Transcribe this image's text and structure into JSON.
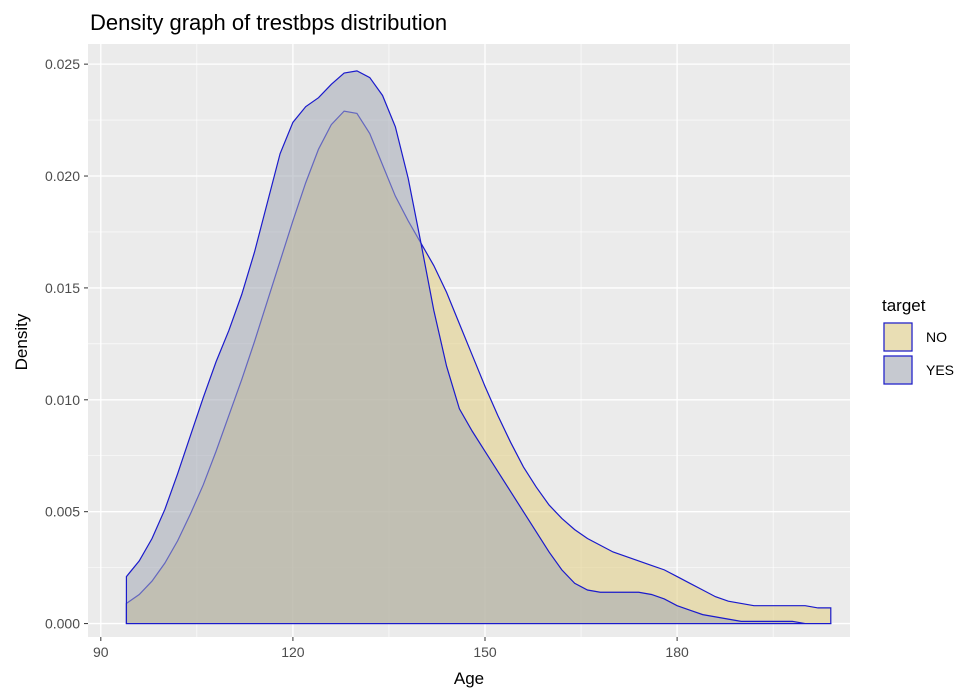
{
  "chart_data": {
    "type": "area",
    "title": "Density graph of trestbps distribution",
    "xlabel": "Age",
    "ylabel": "Density",
    "xlim": [
      88,
      207
    ],
    "ylim": [
      -0.0006,
      0.0259
    ],
    "x_ticks": [
      90,
      120,
      150,
      180
    ],
    "y_ticks": [
      0.0,
      0.005,
      0.01,
      0.015,
      0.02,
      0.025
    ],
    "x_tick_labels": [
      "90",
      "120",
      "150",
      "180"
    ],
    "y_tick_labels": [
      "0.000",
      "0.005",
      "0.010",
      "0.015",
      "0.020",
      "0.025"
    ],
    "grid": true,
    "legend": {
      "title": "target",
      "position": "right"
    },
    "series": [
      {
        "name": "NO",
        "fill": "#e3d08a",
        "fill_opacity": 0.6,
        "stroke": "#1a1acc",
        "x": [
          94,
          96,
          98,
          100,
          102,
          104,
          106,
          108,
          110,
          112,
          114,
          116,
          118,
          120,
          122,
          124,
          126,
          128,
          130,
          132,
          134,
          136,
          138,
          140,
          142,
          144,
          146,
          148,
          150,
          152,
          154,
          156,
          158,
          160,
          162,
          164,
          166,
          168,
          170,
          172,
          174,
          176,
          178,
          180,
          182,
          184,
          186,
          188,
          190,
          192,
          194,
          196,
          198,
          200,
          202,
          204
        ],
        "y": [
          0.0009,
          0.0013,
          0.0019,
          0.0027,
          0.0037,
          0.0049,
          0.0062,
          0.0077,
          0.0093,
          0.0109,
          0.0126,
          0.0144,
          0.0162,
          0.018,
          0.0197,
          0.0212,
          0.0223,
          0.0229,
          0.0228,
          0.0219,
          0.0205,
          0.0191,
          0.018,
          0.017,
          0.016,
          0.0148,
          0.0134,
          0.012,
          0.0106,
          0.0093,
          0.0081,
          0.007,
          0.0061,
          0.0053,
          0.0047,
          0.0042,
          0.0038,
          0.0035,
          0.0032,
          0.003,
          0.0028,
          0.0026,
          0.0024,
          0.0021,
          0.0018,
          0.0015,
          0.0012,
          0.001,
          0.0009,
          0.0008,
          0.0008,
          0.0008,
          0.0008,
          0.0008,
          0.0007,
          0.0007
        ]
      },
      {
        "name": "YES",
        "fill": "#a3a8b4",
        "fill_opacity": 0.55,
        "stroke": "#1a1acc",
        "x": [
          94,
          96,
          98,
          100,
          102,
          104,
          106,
          108,
          110,
          112,
          114,
          116,
          118,
          120,
          122,
          124,
          126,
          128,
          130,
          132,
          134,
          136,
          138,
          140,
          142,
          144,
          146,
          148,
          150,
          152,
          154,
          156,
          158,
          160,
          162,
          164,
          166,
          168,
          170,
          172,
          174,
          176,
          178,
          180,
          182,
          184,
          186,
          188,
          190,
          192,
          194,
          196,
          198,
          200,
          202,
          204
        ],
        "y": [
          0.0021,
          0.0028,
          0.0038,
          0.0051,
          0.0067,
          0.0084,
          0.0101,
          0.0117,
          0.0131,
          0.0147,
          0.0166,
          0.0188,
          0.021,
          0.0224,
          0.0231,
          0.0235,
          0.0241,
          0.0246,
          0.0247,
          0.0244,
          0.0236,
          0.0222,
          0.0199,
          0.017,
          0.014,
          0.0115,
          0.0096,
          0.0086,
          0.0077,
          0.0068,
          0.0059,
          0.005,
          0.0041,
          0.0032,
          0.0024,
          0.0018,
          0.0015,
          0.0014,
          0.0014,
          0.0014,
          0.0014,
          0.0013,
          0.0011,
          0.0008,
          0.0006,
          0.0004,
          0.0003,
          0.0002,
          0.0001,
          0.0001,
          0.0001,
          0.0001,
          0.0001,
          0.0,
          0.0,
          0.0
        ]
      }
    ]
  }
}
